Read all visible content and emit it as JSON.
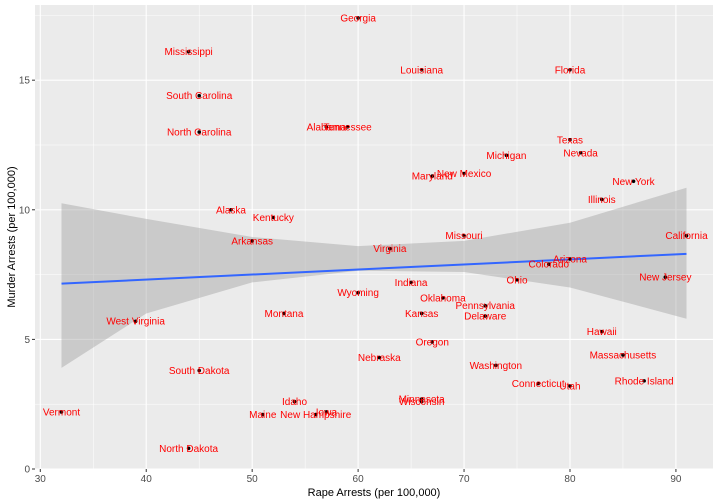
{
  "chart_data": {
    "type": "scatter",
    "title": "",
    "xlabel": "Rape Arrests (per 100,000)",
    "ylabel": "Murder Arrests (per 100,000)",
    "xlim": [
      29.5,
      93.5
    ],
    "ylim": [
      0,
      17.9
    ],
    "xticks": [
      30,
      40,
      50,
      60,
      70,
      80,
      90
    ],
    "yticks": [
      0,
      5,
      10,
      15
    ],
    "grid": true,
    "colors": {
      "panel": "#ebebeb",
      "grid": "#ffffff",
      "points": "#000000",
      "labels": "#ff0000",
      "trend": "#3366ff",
      "ribbon": "#999999"
    },
    "points": [
      {
        "name": "Georgia",
        "x": 60,
        "y": 17.4
      },
      {
        "name": "Mississippi",
        "x": 44,
        "y": 16.1
      },
      {
        "name": "Louisiana",
        "x": 66,
        "y": 15.4
      },
      {
        "name": "Florida",
        "x": 80,
        "y": 15.4
      },
      {
        "name": "South Carolina",
        "x": 45,
        "y": 14.4
      },
      {
        "name": "Alabama",
        "x": 57,
        "y": 13.2
      },
      {
        "name": "Tennessee",
        "x": 59,
        "y": 13.2
      },
      {
        "name": "North Carolina",
        "x": 45,
        "y": 13.0
      },
      {
        "name": "Texas",
        "x": 80,
        "y": 12.7
      },
      {
        "name": "Nevada",
        "x": 81,
        "y": 12.2
      },
      {
        "name": "Michigan",
        "x": 74,
        "y": 12.1
      },
      {
        "name": "New Mexico",
        "x": 70,
        "y": 11.4
      },
      {
        "name": "Maryland",
        "x": 67,
        "y": 11.3
      },
      {
        "name": "New York",
        "x": 86,
        "y": 11.1
      },
      {
        "name": "Illinois",
        "x": 83,
        "y": 10.4
      },
      {
        "name": "Alaska",
        "x": 48,
        "y": 10.0
      },
      {
        "name": "Kentucky",
        "x": 52,
        "y": 9.7
      },
      {
        "name": "California",
        "x": 91,
        "y": 9.0
      },
      {
        "name": "Missouri",
        "x": 70,
        "y": 9.0
      },
      {
        "name": "Arkansas",
        "x": 50,
        "y": 8.8
      },
      {
        "name": "Virginia",
        "x": 63,
        "y": 8.5
      },
      {
        "name": "Arizona",
        "x": 80,
        "y": 8.1
      },
      {
        "name": "Colorado",
        "x": 78,
        "y": 7.9
      },
      {
        "name": "New Jersey",
        "x": 89,
        "y": 7.4
      },
      {
        "name": "Ohio",
        "x": 75,
        "y": 7.3
      },
      {
        "name": "Indiana",
        "x": 65,
        "y": 7.2
      },
      {
        "name": "Wyoming",
        "x": 60,
        "y": 6.8
      },
      {
        "name": "Oklahoma",
        "x": 68,
        "y": 6.6
      },
      {
        "name": "Pennsylvania",
        "x": 72,
        "y": 6.3
      },
      {
        "name": "Montana",
        "x": 53,
        "y": 6.0
      },
      {
        "name": "Kansas",
        "x": 66,
        "y": 6.0
      },
      {
        "name": "Delaware",
        "x": 72,
        "y": 5.9
      },
      {
        "name": "West Virginia",
        "x": 39,
        "y": 5.7
      },
      {
        "name": "Hawaii",
        "x": 83,
        "y": 5.3
      },
      {
        "name": "Oregon",
        "x": 67,
        "y": 4.9
      },
      {
        "name": "Massachusetts",
        "x": 85,
        "y": 4.4
      },
      {
        "name": "Nebraska",
        "x": 62,
        "y": 4.3
      },
      {
        "name": "Washington",
        "x": 73,
        "y": 4.0
      },
      {
        "name": "South Dakota",
        "x": 45,
        "y": 3.8
      },
      {
        "name": "Rhode Island",
        "x": 87,
        "y": 3.4
      },
      {
        "name": "Connecticut",
        "x": 77,
        "y": 3.3
      },
      {
        "name": "Utah",
        "x": 80,
        "y": 3.2
      },
      {
        "name": "Minnesota",
        "x": 66,
        "y": 2.7
      },
      {
        "name": "Wisconsin",
        "x": 66,
        "y": 2.6
      },
      {
        "name": "Idaho",
        "x": 54,
        "y": 2.6
      },
      {
        "name": "Iowa",
        "x": 57,
        "y": 2.2
      },
      {
        "name": "Maine",
        "x": 51,
        "y": 2.1
      },
      {
        "name": "New Hampshire",
        "x": 56,
        "y": 2.1
      },
      {
        "name": "Vermont",
        "x": 32,
        "y": 2.2
      },
      {
        "name": "North Dakota",
        "x": 44,
        "y": 0.8
      }
    ],
    "trend": {
      "x": [
        32,
        91
      ],
      "y": [
        7.15,
        8.3
      ],
      "band_x": [
        32,
        40,
        50,
        60,
        70,
        80,
        91
      ],
      "band_lower": [
        3.9,
        6.0,
        7.2,
        7.65,
        7.6,
        7.0,
        5.8
      ],
      "band_upper": [
        10.25,
        9.65,
        8.95,
        8.6,
        8.8,
        9.5,
        10.85
      ]
    }
  }
}
